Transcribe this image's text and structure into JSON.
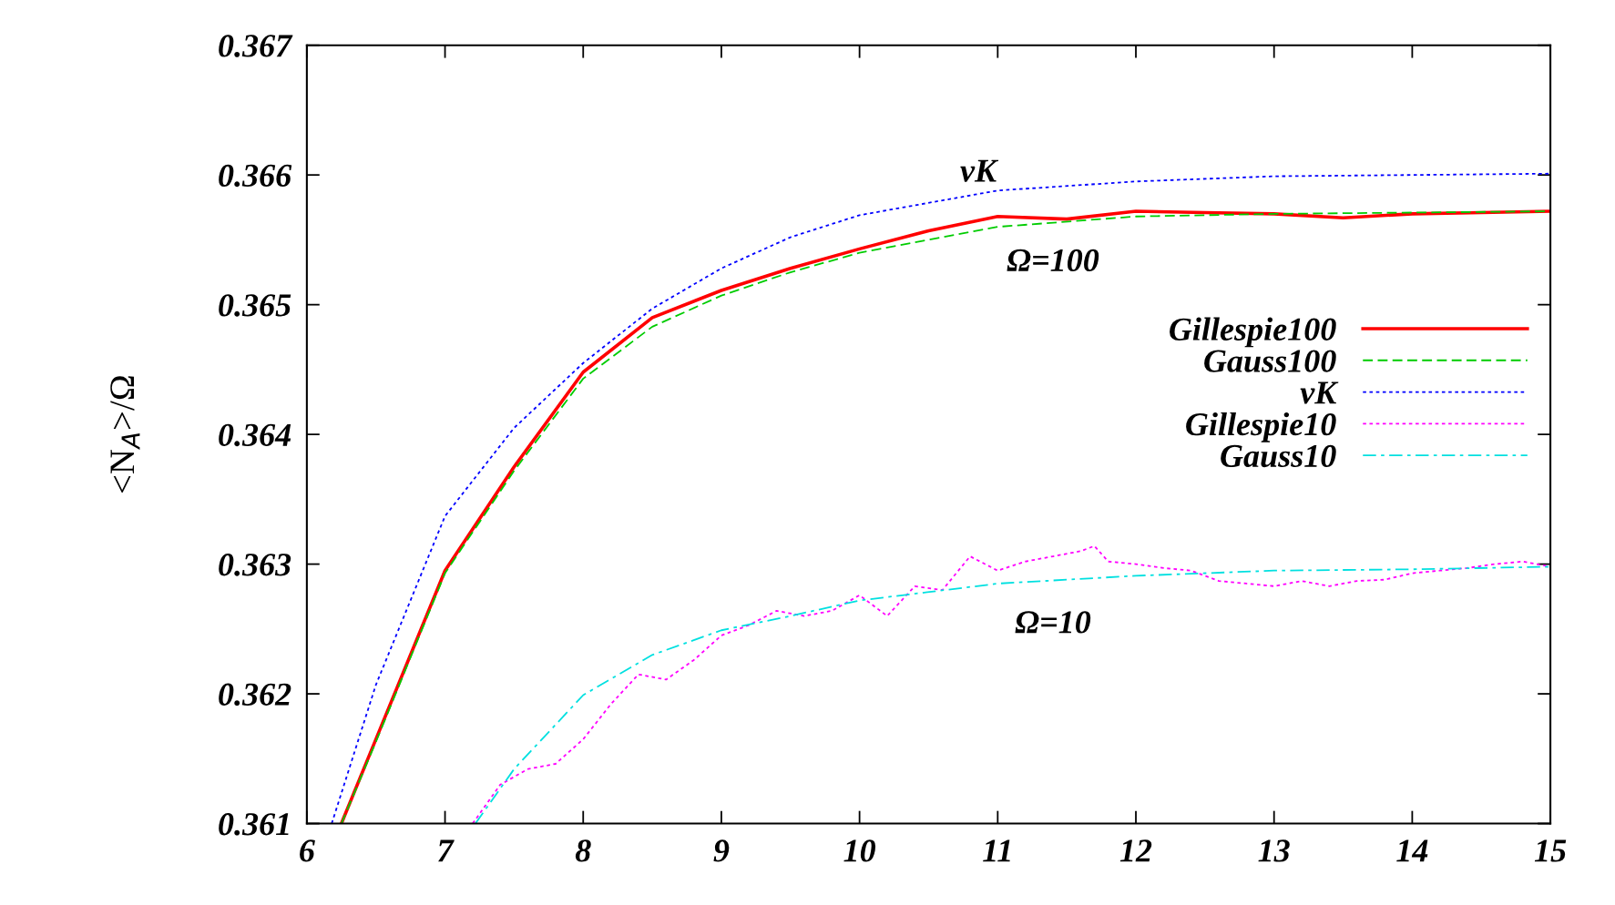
{
  "chart_data": {
    "type": "line",
    "ylabel": "<N$_{A}$>/Ω",
    "xlim": [
      6,
      15
    ],
    "xticks": [
      6,
      7,
      8,
      9,
      10,
      11,
      12,
      13,
      14,
      15
    ],
    "ylim": [
      0.361,
      0.367
    ],
    "yticks": [
      0.361,
      0.362,
      0.363,
      0.364,
      0.365,
      0.366,
      0.367
    ],
    "grid": false,
    "legend": "right",
    "series": [
      {
        "name": "Gillespie100",
        "color": "#ff0000",
        "line_style": "solid",
        "x": [
          6.25,
          6.5,
          7,
          7.5,
          8,
          8.5,
          9,
          9.5,
          10,
          10.5,
          11,
          11.5,
          12,
          12.5,
          13,
          13.5,
          14,
          14.5,
          15
        ],
        "values": [
          0.361,
          0.36165,
          0.36295,
          0.36375,
          0.36448,
          0.3649,
          0.36511,
          0.36528,
          0.36543,
          0.36557,
          0.36568,
          0.36566,
          0.36572,
          0.36571,
          0.3657,
          0.36567,
          0.3657,
          0.36571,
          0.36572
        ]
      },
      {
        "name": "Gauss100",
        "color": "#00cc00",
        "line_style": "dashed",
        "x": [
          6.25,
          6.5,
          7,
          7.5,
          8,
          8.5,
          9,
          9.5,
          10,
          11,
          12,
          13,
          14,
          15
        ],
        "values": [
          0.361,
          0.36163,
          0.36293,
          0.36372,
          0.36443,
          0.36483,
          0.36507,
          0.36525,
          0.3654,
          0.3656,
          0.36568,
          0.3657,
          0.36571,
          0.36572
        ]
      },
      {
        "name": "vK",
        "color": "#0000ff",
        "line_style": "dotted",
        "x": [
          6.18,
          6.5,
          7,
          7.5,
          8,
          8.5,
          9,
          9.5,
          10,
          11,
          12,
          13,
          14,
          15
        ],
        "values": [
          0.361,
          0.36207,
          0.36337,
          0.36405,
          0.36455,
          0.36497,
          0.36528,
          0.36552,
          0.36569,
          0.36588,
          0.36595,
          0.36599,
          0.366,
          0.36601
        ]
      },
      {
        "name": "Gillespie10",
        "color": "#ff00ff",
        "line_style": "dotted",
        "x": [
          7.2,
          7.4,
          7.6,
          7.8,
          8,
          8.2,
          8.4,
          8.6,
          8.8,
          9,
          9.2,
          9.4,
          9.6,
          9.8,
          10,
          10.2,
          10.4,
          10.6,
          10.8,
          11,
          11.2,
          11.4,
          11.6,
          11.7,
          11.8,
          12,
          12.2,
          12.4,
          12.6,
          12.8,
          13,
          13.2,
          13.4,
          13.6,
          13.8,
          14,
          14.2,
          14.4,
          14.6,
          14.8,
          15
        ],
        "values": [
          0.361,
          0.3613,
          0.36142,
          0.36146,
          0.36165,
          0.36192,
          0.36215,
          0.36211,
          0.36226,
          0.36245,
          0.36253,
          0.36264,
          0.3626,
          0.36264,
          0.36276,
          0.3626,
          0.36283,
          0.3628,
          0.36306,
          0.36295,
          0.36302,
          0.36306,
          0.3631,
          0.36314,
          0.36302,
          0.363,
          0.36297,
          0.36295,
          0.36287,
          0.36285,
          0.36283,
          0.36287,
          0.36283,
          0.36287,
          0.36288,
          0.36293,
          0.36295,
          0.36297,
          0.363,
          0.36302,
          0.36298
        ]
      },
      {
        "name": "Gauss10",
        "color": "#00e0e0",
        "line_style": "dashdot",
        "x": [
          7.22,
          7.5,
          8,
          8.5,
          9,
          9.5,
          10,
          11,
          12,
          13,
          14,
          15
        ],
        "values": [
          0.361,
          0.36142,
          0.36199,
          0.3623,
          0.36249,
          0.3626,
          0.36272,
          0.36285,
          0.36291,
          0.36295,
          0.36296,
          0.36298
        ]
      }
    ],
    "annotations": [
      "vK",
      "Ω=100",
      "Ω=10"
    ]
  }
}
